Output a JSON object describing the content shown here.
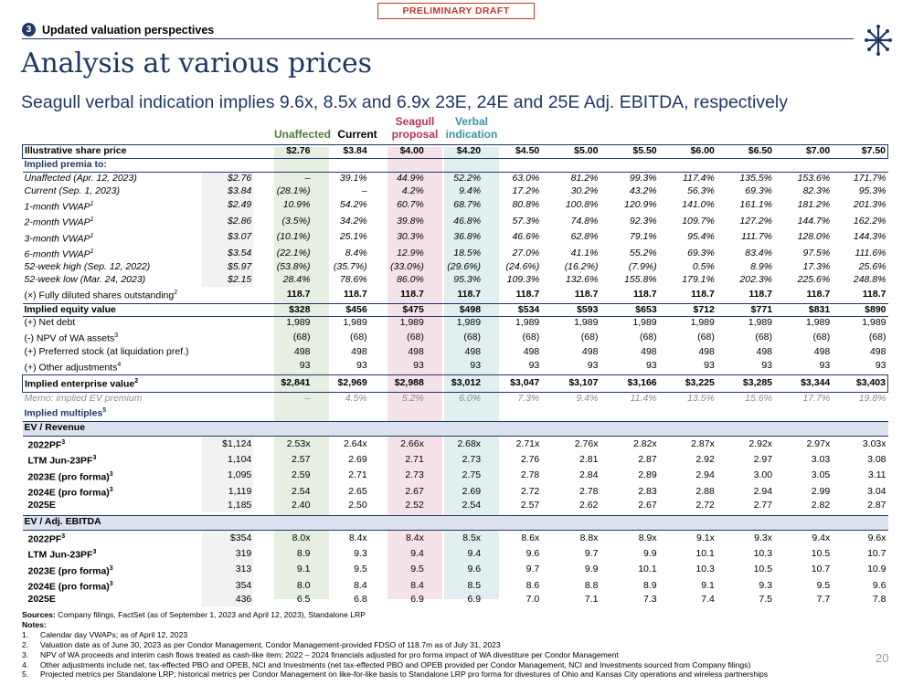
{
  "draft_label": "PRELIMINARY DRAFT",
  "section": {
    "number": "3",
    "label": "Updated valuation perspectives"
  },
  "title": "Analysis at various prices",
  "subtitle": "Seagull verbal indication implies 9.6x, 8.5x and 6.9x 23E, 24E and 25E Adj. EBITDA, respectively",
  "column_headers": {
    "unaffected": "Unaffected",
    "current": "Current",
    "seagull_line1": "Seagull",
    "seagull_line2": "proposal",
    "verbal_line1": "Verbal",
    "verbal_line2": "indication"
  },
  "colors": {
    "navy": "#1f3864",
    "unaffected_band": "#e6efe2",
    "seagull_band": "#f6e3ea",
    "verbal_band": "#e2eff1",
    "draft_red": "#c0392b"
  },
  "share_price_row": {
    "label": "Illustrative share price",
    "values": [
      "$2.76",
      "$3.84",
      "$4.00",
      "$4.20",
      "$4.50",
      "$5.00",
      "$5.50",
      "$6.00",
      "$6.50",
      "$7.00",
      "$7.50"
    ]
  },
  "premia_title": "Implied premia to:",
  "premia": [
    {
      "label": "Unaffected (Apr. 12, 2023)",
      "sup": "",
      "ref": "$2.76",
      "values": [
        "–",
        "39.1%",
        "44.9%",
        "52.2%",
        "63.0%",
        "81.2%",
        "99.3%",
        "117.4%",
        "135.5%",
        "153.6%",
        "171.7%"
      ]
    },
    {
      "label": "Current (Sep. 1, 2023)",
      "sup": "",
      "ref": "$3.84",
      "values": [
        "(28.1%)",
        "–",
        "4.2%",
        "9.4%",
        "17.2%",
        "30.2%",
        "43.2%",
        "56.3%",
        "69.3%",
        "82.3%",
        "95.3%"
      ]
    },
    {
      "label": "1-month VWAP",
      "sup": "1",
      "ref": "$2.49",
      "values": [
        "10.9%",
        "54.2%",
        "60.7%",
        "68.7%",
        "80.8%",
        "100.8%",
        "120.9%",
        "141.0%",
        "161.1%",
        "181.2%",
        "201.3%"
      ]
    },
    {
      "label": "2-month VWAP",
      "sup": "1",
      "ref": "$2.86",
      "values": [
        "(3.5%)",
        "34.2%",
        "39.8%",
        "46.8%",
        "57.3%",
        "74.8%",
        "92.3%",
        "109.7%",
        "127.2%",
        "144.7%",
        "162.2%"
      ]
    },
    {
      "label": "3-month VWAP",
      "sup": "1",
      "ref": "$3.07",
      "values": [
        "(10.1%)",
        "25.1%",
        "30.3%",
        "36.8%",
        "46.6%",
        "62.8%",
        "79.1%",
        "95.4%",
        "111.7%",
        "128.0%",
        "144.3%"
      ]
    },
    {
      "label": "6-month VWAP",
      "sup": "1",
      "ref": "$3.54",
      "values": [
        "(22.1%)",
        "8.4%",
        "12.9%",
        "18.5%",
        "27.0%",
        "41.1%",
        "55.2%",
        "69.3%",
        "83.4%",
        "97.5%",
        "111.6%"
      ]
    },
    {
      "label": "52-week high (Sep. 12, 2022)",
      "sup": "",
      "ref": "$5.97",
      "values": [
        "(53.8%)",
        "(35.7%)",
        "(33.0%)",
        "(29.6%)",
        "(24.6%)",
        "(16.2%)",
        "(7.9%)",
        "0.5%",
        "8.9%",
        "17.3%",
        "25.6%"
      ]
    },
    {
      "label": "52-week low (Mar. 24, 2023)",
      "sup": "",
      "ref": "$2.15",
      "values": [
        "28.4%",
        "78.6%",
        "86.0%",
        "95.3%",
        "109.3%",
        "132.6%",
        "155.8%",
        "179.1%",
        "202.3%",
        "225.6%",
        "248.8%"
      ]
    }
  ],
  "fdso_row": {
    "label": "(×) Fully diluted shares outstanding",
    "sup": "2",
    "values": [
      "118.7",
      "118.7",
      "118.7",
      "118.7",
      "118.7",
      "118.7",
      "118.7",
      "118.7",
      "118.7",
      "118.7",
      "118.7"
    ]
  },
  "equity_row": {
    "label": "Implied equity value",
    "values": [
      "$328",
      "$456",
      "$475",
      "$498",
      "$534",
      "$593",
      "$653",
      "$712",
      "$771",
      "$831",
      "$890"
    ]
  },
  "bridge": [
    {
      "label": "(+) Net debt",
      "sup": "",
      "values": [
        "1,989",
        "1,989",
        "1,989",
        "1,989",
        "1,989",
        "1,989",
        "1,989",
        "1,989",
        "1,989",
        "1,989",
        "1,989"
      ]
    },
    {
      "label": "(-)  NPV of WA assets",
      "sup": "3",
      "values": [
        "(68)",
        "(68)",
        "(68)",
        "(68)",
        "(68)",
        "(68)",
        "(68)",
        "(68)",
        "(68)",
        "(68)",
        "(68)"
      ]
    },
    {
      "label": "(+) Preferred stock (at liquidation pref.)",
      "sup": "",
      "values": [
        "498",
        "498",
        "498",
        "498",
        "498",
        "498",
        "498",
        "498",
        "498",
        "498",
        "498"
      ]
    },
    {
      "label": "(+) Other adjustments",
      "sup": "4",
      "values": [
        "93",
        "93",
        "93",
        "93",
        "93",
        "93",
        "93",
        "93",
        "93",
        "93",
        "93"
      ]
    }
  ],
  "ev_row": {
    "label": "Implied enterprise value",
    "sup": "2",
    "values": [
      "$2,841",
      "$2,969",
      "$2,988",
      "$3,012",
      "$3,047",
      "$3,107",
      "$3,166",
      "$3,225",
      "$3,285",
      "$3,344",
      "$3,403"
    ]
  },
  "memo_row": {
    "label": "Memo: implied EV premium",
    "values": [
      "–",
      "4.5%",
      "5.2%",
      "6.0%",
      "7.3%",
      "9.4%",
      "11.4%",
      "13.5%",
      "15.6%",
      "17.7%",
      "19.8%"
    ]
  },
  "multiples_title": "Implied multiples",
  "multiples_title_sup": "5",
  "ev_revenue": {
    "header": "EV / Revenue",
    "rows": [
      {
        "label": "2022PF",
        "sup": "3",
        "ref": "$1,124",
        "values": [
          "2.53x",
          "2.64x",
          "2.66x",
          "2.68x",
          "2.71x",
          "2.76x",
          "2.82x",
          "2.87x",
          "2.92x",
          "2.97x",
          "3.03x"
        ]
      },
      {
        "label": "LTM Jun-23PF",
        "sup": "3",
        "ref": "1,104",
        "values": [
          "2.57",
          "2.69",
          "2.71",
          "2.73",
          "2.76",
          "2.81",
          "2.87",
          "2.92",
          "2.97",
          "3.03",
          "3.08"
        ]
      },
      {
        "label": "2023E (pro forma)",
        "sup": "3",
        "ref": "1,095",
        "values": [
          "2.59",
          "2.71",
          "2.73",
          "2.75",
          "2.78",
          "2.84",
          "2.89",
          "2.94",
          "3.00",
          "3.05",
          "3.11"
        ]
      },
      {
        "label": "2024E (pro forma)",
        "sup": "3",
        "ref": "1,119",
        "values": [
          "2.54",
          "2.65",
          "2.67",
          "2.69",
          "2.72",
          "2.78",
          "2.83",
          "2.88",
          "2.94",
          "2.99",
          "3.04"
        ]
      },
      {
        "label": "2025E",
        "sup": "",
        "ref": "1,185",
        "values": [
          "2.40",
          "2.50",
          "2.52",
          "2.54",
          "2.57",
          "2.62",
          "2.67",
          "2.72",
          "2.77",
          "2.82",
          "2.87"
        ]
      }
    ]
  },
  "ev_ebitda": {
    "header": "EV / Adj. EBITDA",
    "rows": [
      {
        "label": "2022PF",
        "sup": "3",
        "ref": "$354",
        "values": [
          "8.0x",
          "8.4x",
          "8.4x",
          "8.5x",
          "8.6x",
          "8.8x",
          "8.9x",
          "9.1x",
          "9.3x",
          "9.4x",
          "9.6x"
        ]
      },
      {
        "label": "LTM Jun-23PF",
        "sup": "3",
        "ref": "319",
        "values": [
          "8.9",
          "9.3",
          "9.4",
          "9.4",
          "9.6",
          "9.7",
          "9.9",
          "10.1",
          "10.3",
          "10.5",
          "10.7"
        ]
      },
      {
        "label": "2023E (pro forma)",
        "sup": "3",
        "ref": "313",
        "values": [
          "9.1",
          "9.5",
          "9.5",
          "9.6",
          "9.7",
          "9.9",
          "10.1",
          "10.3",
          "10.5",
          "10.7",
          "10.9"
        ]
      },
      {
        "label": "2024E (pro forma)",
        "sup": "3",
        "ref": "354",
        "values": [
          "8.0",
          "8.4",
          "8.4",
          "8.5",
          "8.6",
          "8.8",
          "8.9",
          "9.1",
          "9.3",
          "9.5",
          "9.6"
        ]
      },
      {
        "label": "2025E",
        "sup": "",
        "ref": "436",
        "values": [
          "6.5",
          "6.8",
          "6.9",
          "6.9",
          "7.0",
          "7.1",
          "7.3",
          "7.4",
          "7.5",
          "7.7",
          "7.8"
        ]
      }
    ]
  },
  "sources": {
    "label": "Sources:",
    "text": "Company filings, FactSet (as of September 1, 2023 and April 12, 2023), Standalone LRP",
    "notes_label": "Notes:",
    "notes": [
      "Calendar day VWAPs; as of April 12, 2023",
      "Valuation date as of June 30, 2023 as per Condor Management, Condor Management-provided FDSO of 118.7m as of July 31, 2023",
      "NPV of WA proceeds and interim cash flows treated as cash-like item; 2022 – 2024 financials adjusted for pro forma impact of WA divestiture per Condor Management",
      "Other adjustments include net, tax-effected PBO and OPEB, NCI and Investments (net tax-effected PBO and OPEB provided per Condor Management, NCI and Investments sourced from Company filings)",
      "Projected metrics per Standalone LRP; historical metrics per Condor Management on like-for-like basis to Standalone LRP pro forma for divestures of Ohio and Kansas City operations and wireless partnerships"
    ]
  },
  "page_number": "20"
}
